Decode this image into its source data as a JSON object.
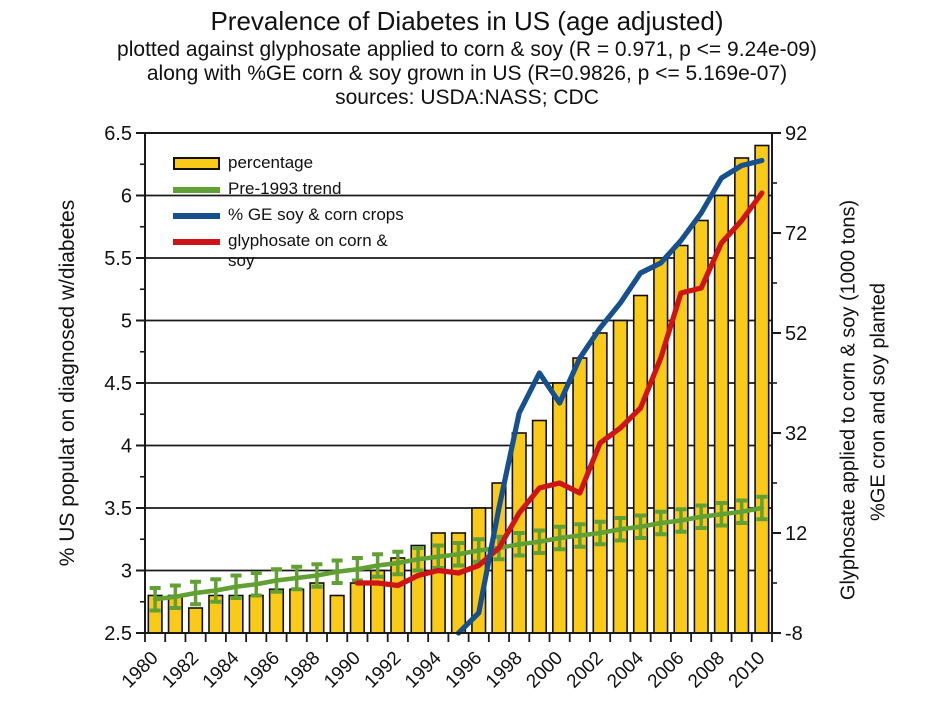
{
  "title": "Prevalence of Diabetes in US (age adjusted)",
  "subtitles": [
    "plotted against glyphosate applied to corn & soy (R = 0.971, p <= 9.24e-09)",
    "along with %GE corn & soy grown in US (R=0.9826, p <= 5.169e-07)",
    "sources: USDA:NASS; CDC"
  ],
  "left_axis": {
    "title": "% US populat on diagnosed w/diabetes",
    "min": 2.5,
    "max": 6.5,
    "tick_values": [
      2.5,
      3,
      3.5,
      4,
      4.5,
      5,
      5.5,
      6,
      6.5
    ],
    "tick_labels": [
      "2.5",
      "3",
      "3.5",
      "4",
      "4.5",
      "5",
      "5.5",
      "6",
      "6.5"
    ],
    "minor_tick_values": [
      2.75,
      3.25,
      3.75,
      4.25,
      4.75,
      5.25,
      5.75,
      6.25
    ],
    "grid_values": [
      3,
      3.5,
      4,
      4.5,
      5,
      5.5,
      6
    ]
  },
  "right_axis": {
    "title_line1": "Glyphosate applied to corn & soy (1000 tons)",
    "title_line2": "%GE cron and soy planted",
    "min": -8,
    "max": 92,
    "tick_values": [
      -8,
      12,
      32,
      52,
      72,
      92
    ],
    "tick_labels": [
      "-8",
      "12",
      "32",
      "52",
      "72",
      "92"
    ],
    "minor_tick_values": [
      2,
      22,
      42,
      62,
      82
    ]
  },
  "x_axis": {
    "tick_label_years": [
      1980,
      1982,
      1984,
      1986,
      1988,
      1990,
      1992,
      1994,
      1996,
      1998,
      2000,
      2002,
      2004,
      2006,
      2008,
      2010
    ],
    "tick_labels": [
      "1980",
      "1982",
      "1984",
      "1986",
      "1988",
      "1990",
      "1992",
      "1994",
      "1996",
      "1998",
      "2000",
      "2002",
      "2004",
      "2006",
      "2008",
      "2010"
    ]
  },
  "legend": {
    "items": [
      {
        "label": "percentage"
      },
      {
        "label": "Pre-1993 trend"
      },
      {
        "label": "% GE soy & corn crops"
      },
      {
        "label": "glyphosate on corn & soy"
      }
    ]
  },
  "chart_data": {
    "type": "bar",
    "subtype": "bars with overlaid lines, dual y-axis",
    "x": [
      1980,
      1981,
      1982,
      1983,
      1984,
      1985,
      1986,
      1987,
      1988,
      1989,
      1990,
      1991,
      1992,
      1993,
      1994,
      1995,
      1996,
      1997,
      1998,
      1999,
      2000,
      2001,
      2002,
      2003,
      2004,
      2005,
      2006,
      2007,
      2008,
      2009,
      2010
    ],
    "left_ylim": [
      2.5,
      6.5
    ],
    "right_ylim": [
      -8,
      92
    ],
    "grid": "horizontal major gridlines",
    "legend_position": "top-left inside plot, no frame",
    "series": [
      {
        "name": "percentage",
        "type": "bar",
        "axis": "left",
        "color": "#F9CB18",
        "outline": "#111111",
        "values": [
          2.8,
          2.8,
          2.7,
          2.8,
          2.8,
          2.8,
          2.85,
          2.85,
          2.9,
          2.8,
          2.9,
          3.0,
          3.1,
          3.2,
          3.3,
          3.3,
          3.5,
          3.7,
          4.1,
          4.2,
          4.5,
          4.7,
          4.9,
          5.0,
          5.2,
          5.5,
          5.6,
          5.8,
          6.0,
          6.3,
          6.4
        ]
      },
      {
        "name": "Pre-1993 trend",
        "type": "line-with-error-bars",
        "axis": "left",
        "color": "#61A033",
        "error": 0.09,
        "values": [
          2.77,
          2.79,
          2.82,
          2.84,
          2.87,
          2.89,
          2.92,
          2.94,
          2.96,
          2.99,
          3.01,
          3.04,
          3.06,
          3.09,
          3.11,
          3.13,
          3.16,
          3.18,
          3.21,
          3.23,
          3.26,
          3.28,
          3.3,
          3.33,
          3.35,
          3.38,
          3.4,
          3.43,
          3.45,
          3.47,
          3.5
        ]
      },
      {
        "name": "% GE soy & corn crops",
        "type": "line",
        "axis": "right",
        "color": "#16508F",
        "x_start": 1995,
        "values": [
          -8,
          -4,
          17,
          36,
          44,
          38,
          47,
          53,
          58,
          64,
          66,
          70.5,
          76,
          83,
          85.5,
          86.5
        ]
      },
      {
        "name": "glyphosate on corn & soy",
        "type": "line",
        "axis": "right",
        "color": "#CE1417",
        "x_start": 1990,
        "values": [
          2,
          2,
          1.5,
          3.5,
          4.5,
          4,
          5.5,
          9,
          16,
          21,
          22,
          20,
          30,
          33,
          37,
          47,
          60,
          61,
          70,
          74.5,
          80
        ]
      }
    ]
  }
}
